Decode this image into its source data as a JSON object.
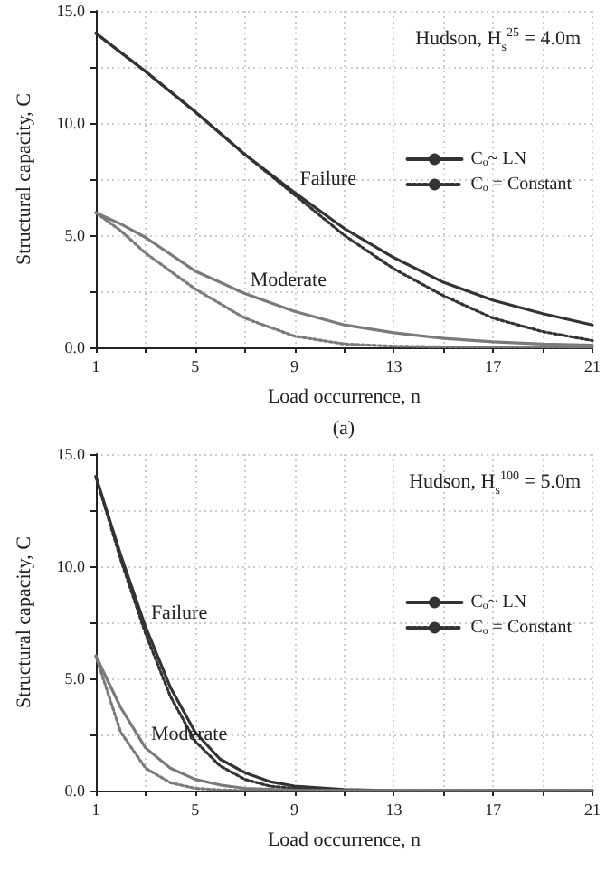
{
  "chart_data": [
    {
      "type": "line",
      "xlabel": "Load occurrence, n",
      "ylabel": "Structural capacity, C",
      "annotations": [
        "Hudson, H$_{s}$$^{25}$ = 4.0m",
        "(a)",
        {
          "text": "Failure",
          "x": 9,
          "y": 6.9
        },
        {
          "text": "Moderate",
          "x": 7,
          "y": 2.4
        }
      ],
      "xlim": [
        1,
        21
      ],
      "ylim": [
        0,
        15
      ],
      "xticks": [
        1,
        {
          "value": 3,
          "label": null
        },
        5,
        {
          "value": 7,
          "label": null
        },
        9,
        {
          "value": 11,
          "label": null
        },
        13,
        {
          "value": 15,
          "label": null
        },
        17,
        {
          "value": 19,
          "label": null
        },
        21
      ],
      "yticks": [
        {
          "value": 0,
          "label": "0.0"
        },
        {
          "value": 2.5,
          "label": null
        },
        {
          "value": 5,
          "label": "5.0"
        },
        {
          "value": 7.5,
          "label": null
        },
        {
          "value": 10,
          "label": "10.0"
        },
        {
          "value": 12.5,
          "label": null
        },
        {
          "value": 15,
          "label": "15.0"
        }
      ],
      "grid": true,
      "legend": "right",
      "marker": "none",
      "series": [
        {
          "name": "Cₒ~ LN",
          "color": "#333333",
          "line_style": "solid",
          "x": [
            1,
            3,
            5,
            7,
            9,
            11,
            13,
            15,
            17,
            19,
            21
          ],
          "values": [
            14.0,
            12.3,
            10.5,
            8.6,
            6.9,
            5.3,
            4.0,
            2.9,
            2.1,
            1.5,
            1.0
          ]
        },
        {
          "name": "Cₒ = Constant",
          "color": "#333333",
          "line_style": "dotted",
          "x": [
            1,
            3,
            5,
            7,
            9,
            11,
            13,
            15,
            17,
            19,
            21
          ],
          "values": [
            14.0,
            12.3,
            10.5,
            8.6,
            6.8,
            5.0,
            3.5,
            2.3,
            1.3,
            0.7,
            0.3
          ]
        },
        {
          "color": "#7a7a7a",
          "line_style": "solid",
          "x": [
            1,
            2,
            3,
            5,
            7,
            9,
            11,
            13,
            15,
            17,
            19,
            21
          ],
          "values": [
            6.0,
            5.5,
            4.9,
            3.4,
            2.4,
            1.6,
            1.0,
            0.65,
            0.4,
            0.25,
            0.15,
            0.1
          ]
        },
        {
          "color": "#7a7a7a",
          "line_style": "dotted",
          "x": [
            1,
            2,
            3,
            5,
            7,
            9,
            11,
            13,
            15,
            17,
            19,
            21
          ],
          "values": [
            6.0,
            5.2,
            4.2,
            2.6,
            1.3,
            0.5,
            0.15,
            0.05,
            0.02,
            0.01,
            0.01,
            0.0
          ]
        }
      ]
    },
    {
      "type": "line",
      "xlabel": "Load occurrence, n",
      "ylabel": "Structural capacity, C",
      "annotations": [
        "Hudson, H$_{s}$$^{100}$ = 5.0m",
        {
          "text": "Failure",
          "x": 3,
          "y": 7.3
        },
        {
          "text": "Moderate",
          "x": 3,
          "y": 1.9
        }
      ],
      "xlim": [
        1,
        21
      ],
      "ylim": [
        0,
        15
      ],
      "xticks": [
        1,
        {
          "value": 3,
          "label": null
        },
        5,
        {
          "value": 7,
          "label": null
        },
        9,
        {
          "value": 11,
          "label": null
        },
        13,
        {
          "value": 15,
          "label": null
        },
        17,
        {
          "value": 19,
          "label": null
        },
        21
      ],
      "yticks": [
        {
          "value": 0,
          "label": "0.0"
        },
        {
          "value": 2.5,
          "label": null
        },
        {
          "value": 5,
          "label": "5.0"
        },
        {
          "value": 7.5,
          "label": null
        },
        {
          "value": 10,
          "label": "10.0"
        },
        {
          "value": 12.5,
          "label": null
        },
        {
          "value": 15,
          "label": "15.0"
        }
      ],
      "grid": true,
      "legend": "right",
      "marker": "none",
      "series": [
        {
          "name": "Cₒ~ LN",
          "color": "#333333",
          "line_style": "solid",
          "x": [
            1,
            2,
            3,
            4,
            5,
            6,
            7,
            8,
            9,
            11,
            13,
            21
          ],
          "values": [
            14.0,
            10.5,
            7.3,
            4.6,
            2.6,
            1.4,
            0.8,
            0.4,
            0.2,
            0.05,
            0.0,
            0.0
          ]
        },
        {
          "name": "Cₒ = Constant",
          "color": "#333333",
          "line_style": "dotted",
          "x": [
            1,
            2,
            3,
            4,
            5,
            6,
            7,
            8,
            9,
            11,
            21
          ],
          "values": [
            14.0,
            10.3,
            7.0,
            4.2,
            2.2,
            1.1,
            0.5,
            0.2,
            0.1,
            0.0,
            0.0
          ]
        },
        {
          "color": "#7a7a7a",
          "line_style": "solid",
          "x": [
            1,
            2,
            3,
            4,
            5,
            6,
            7,
            9,
            11,
            21
          ],
          "values": [
            6.0,
            3.7,
            1.9,
            1.0,
            0.5,
            0.25,
            0.1,
            0.02,
            0.0,
            0.0
          ]
        },
        {
          "color": "#7a7a7a",
          "line_style": "dotted",
          "x": [
            1,
            2,
            3,
            4,
            5,
            6,
            7,
            21
          ],
          "values": [
            6.0,
            2.6,
            1.0,
            0.35,
            0.1,
            0.03,
            0.0,
            0.0
          ]
        }
      ]
    }
  ]
}
